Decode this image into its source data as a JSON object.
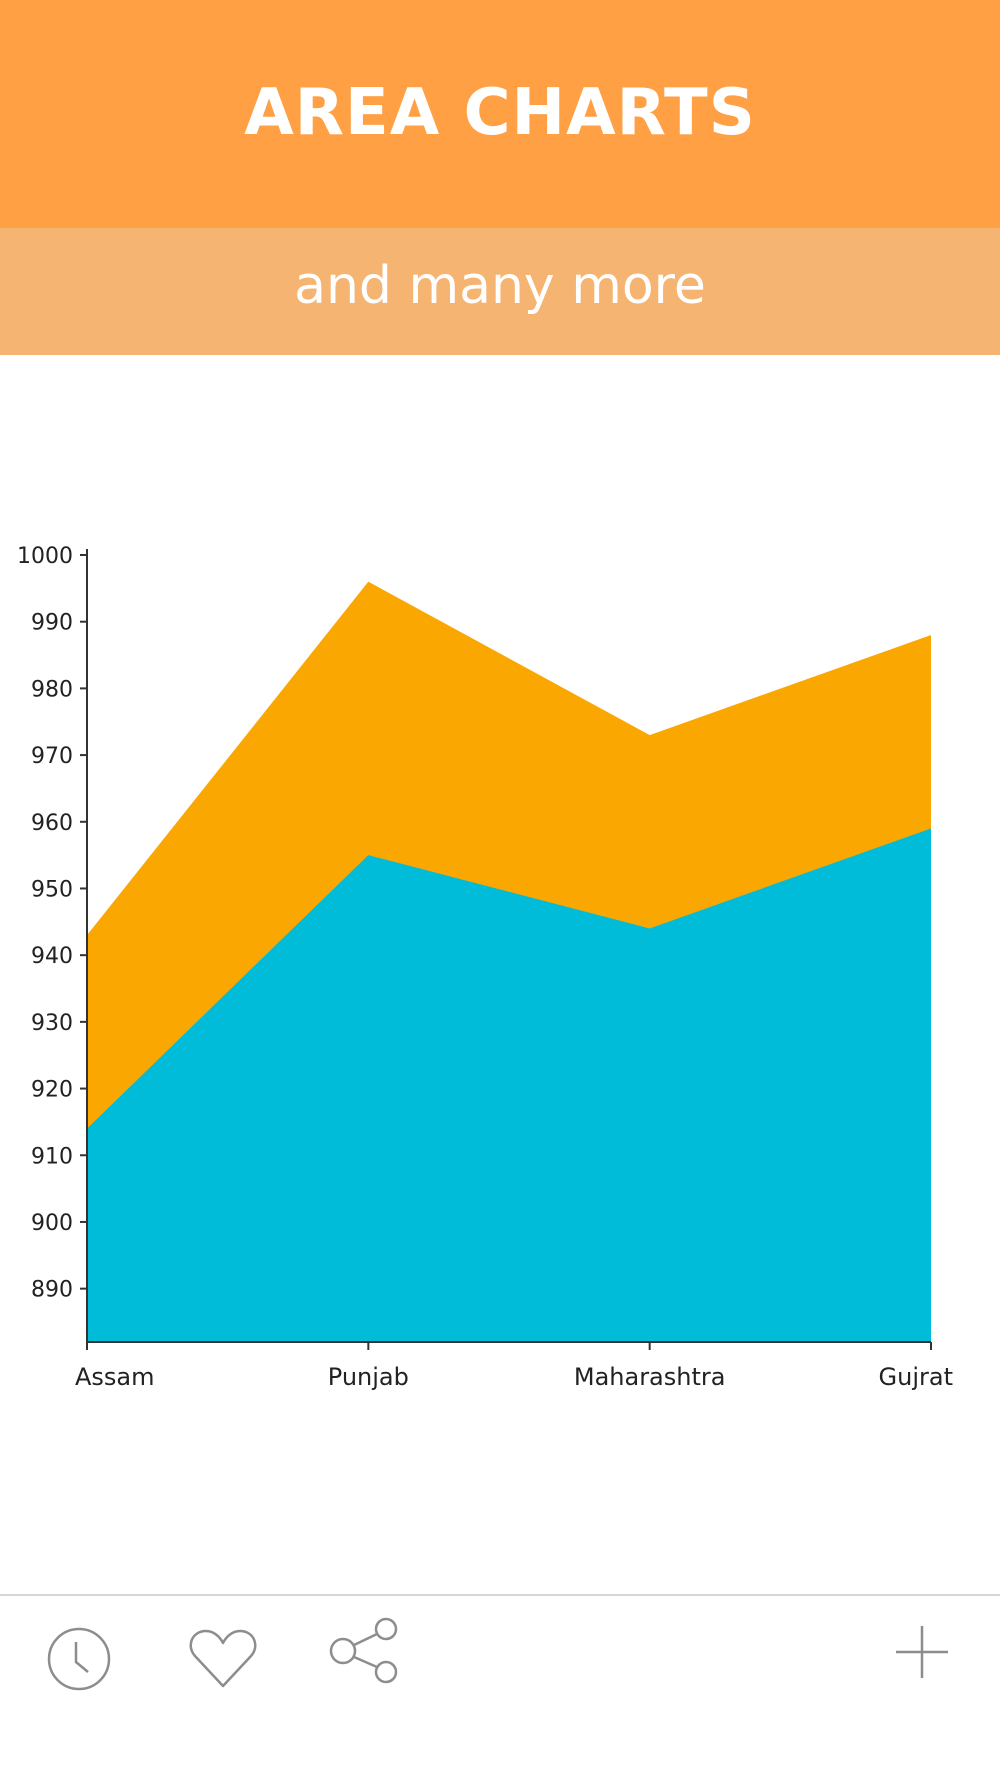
{
  "header": {
    "title": "AREA CHARTS"
  },
  "subheader": {
    "text": "and many more"
  },
  "colors": {
    "header_bg": "#ffa045",
    "subheader_bg": "#f5b472",
    "series_top": "#fba702",
    "series_bottom": "#00bcd9",
    "axis": "#333333",
    "icon": "#8d8d8d"
  },
  "toolbar": {
    "icons": [
      "clock-icon",
      "heart-icon",
      "share-icon",
      "plus-icon"
    ]
  },
  "chart_data": {
    "type": "area",
    "categories": [
      "Assam",
      "Punjab",
      "Maharashtra",
      "Gujrat"
    ],
    "series": [
      {
        "values": [
          914,
          955,
          944,
          959
        ]
      },
      {
        "values": [
          943,
          996,
          973,
          988
        ]
      }
    ],
    "ylim": [
      882,
      1000
    ],
    "yticks": [
      890,
      900,
      910,
      920,
      930,
      940,
      950,
      960,
      970,
      980,
      990,
      1000
    ],
    "grid": false
  }
}
